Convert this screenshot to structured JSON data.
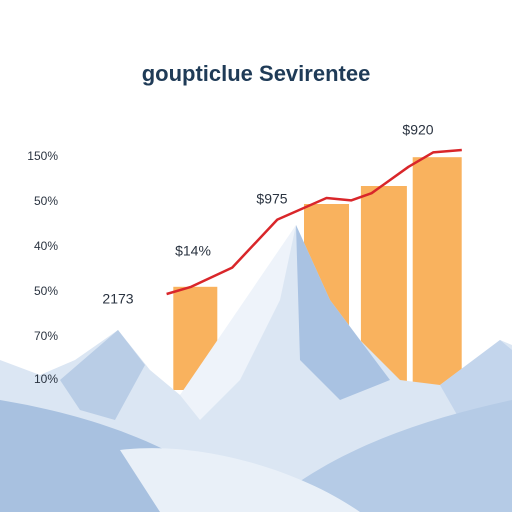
{
  "chart_data": {
    "type": "bar",
    "title": "goupticlue Sevirentee",
    "axis_labels": [
      "150%",
      "50%",
      "40%",
      "50%",
      "70%",
      "10%"
    ],
    "xlim": [
      0,
      100
    ],
    "ylim": [
      0,
      100
    ],
    "bars": {
      "x": [
        33,
        65,
        79,
        92
      ],
      "values": [
        43,
        77.5,
        85,
        97
      ],
      "color": "#f9b25e"
    },
    "line": {
      "x": [
        26,
        32,
        42,
        53,
        65,
        71,
        76,
        85,
        91,
        98
      ],
      "values": [
        40,
        43,
        51,
        71,
        80,
        79,
        82,
        93,
        99,
        100
      ],
      "color": "#d9262a"
    },
    "annotations": [
      "2173",
      "$14%",
      "$975",
      "$920"
    ]
  }
}
